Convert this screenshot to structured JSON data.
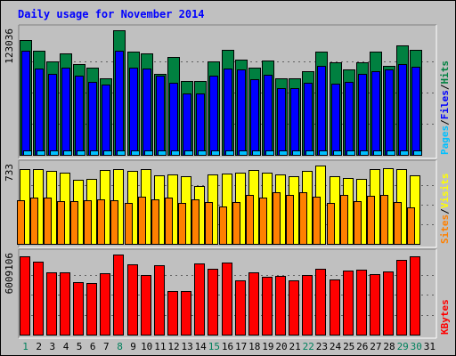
{
  "chart_data": {
    "type": "bar",
    "title": "Daily usage for November 2014",
    "categories": [
      "1",
      "2",
      "3",
      "4",
      "5",
      "6",
      "7",
      "8",
      "9",
      "10",
      "11",
      "12",
      "13",
      "14",
      "15",
      "16",
      "17",
      "18",
      "19",
      "20",
      "21",
      "22",
      "23",
      "24",
      "25",
      "26",
      "27",
      "28",
      "29",
      "30",
      "31"
    ],
    "weekend_days": [
      "1",
      "8",
      "15",
      "22",
      "29",
      "30"
    ],
    "panels": [
      {
        "id": "hits",
        "max_label": "123036",
        "ymax": 123036,
        "legend": [
          "Pages",
          "Files",
          "Hits"
        ],
        "series": [
          {
            "name": "Hits",
            "color": "#008040",
            "values": [
              113000,
              103000,
              92000,
              100000,
              90000,
              86000,
              76000,
              123036,
              102000,
              100000,
              80000,
              97000,
              73000,
              73000,
              92000,
              104000,
              94000,
              86000,
              93000,
              76000,
              76000,
              83000,
              102000,
              91000,
              84000,
              91000,
              102000,
              88000,
              108000,
              104000,
              null
            ]
          },
          {
            "name": "Files",
            "color": "#0000ff",
            "values": [
              103000,
              85000,
              80000,
              86000,
              78000,
              72000,
              69000,
              103000,
              86000,
              85000,
              78000,
              71000,
              61000,
              61000,
              78000,
              85000,
              84000,
              75000,
              79000,
              66000,
              66000,
              71000,
              88000,
              70000,
              72000,
              80000,
              83000,
              84000,
              90000,
              87000,
              null
            ]
          },
          {
            "name": "Pages",
            "color": "#00c0ff",
            "values": [
              2000,
              2000,
              2000,
              2000,
              2000,
              2000,
              2000,
              2000,
              2000,
              2000,
              2000,
              2000,
              2000,
              2000,
              2000,
              2000,
              2000,
              2000,
              2000,
              2000,
              2000,
              2000,
              2000,
              2000,
              2000,
              2000,
              2000,
              2000,
              2000,
              2000,
              null
            ]
          }
        ]
      },
      {
        "id": "visits",
        "max_label": "733",
        "ymax": 733,
        "legend": [
          "Sites",
          "Visits"
        ],
        "series": [
          {
            "name": "Visits",
            "color": "#ffff00",
            "values": [
              700,
              700,
              680,
              670,
              600,
              610,
              690,
              700,
              680,
              700,
              640,
              650,
              630,
              540,
              650,
              660,
              670,
              690,
              670,
              650,
              630,
              680,
              733,
              630,
              620,
              610,
              700,
              710,
              700,
              640,
              null
            ]
          },
          {
            "name": "Sites",
            "color": "#ff8000",
            "values": [
              410,
              430,
              430,
              400,
              400,
              410,
              420,
              410,
              380,
              440,
              420,
              430,
              380,
              420,
              390,
              350,
              390,
              460,
              430,
              480,
              460,
              480,
              440,
              380,
              460,
              400,
              450,
              460,
              390,
              340,
              null
            ]
          }
        ]
      },
      {
        "id": "kbytes",
        "max_label": "6009106",
        "ymax": 6009106,
        "legend": [
          "KBytes"
        ],
        "series": [
          {
            "name": "KBytes",
            "color": "#ff0000",
            "values": [
              5860000,
              5500000,
              4660000,
              4660000,
              3940000,
              3840000,
              4600000,
              6009106,
              5280000,
              4450000,
              5210000,
              3300000,
              3300000,
              5320000,
              4970000,
              5430000,
              4040000,
              4660000,
              4370000,
              4410000,
              4070000,
              4490000,
              4970000,
              4140000,
              4790000,
              4900000,
              4540000,
              4770000,
              5630000,
              5900000,
              null
            ]
          }
        ]
      }
    ]
  }
}
